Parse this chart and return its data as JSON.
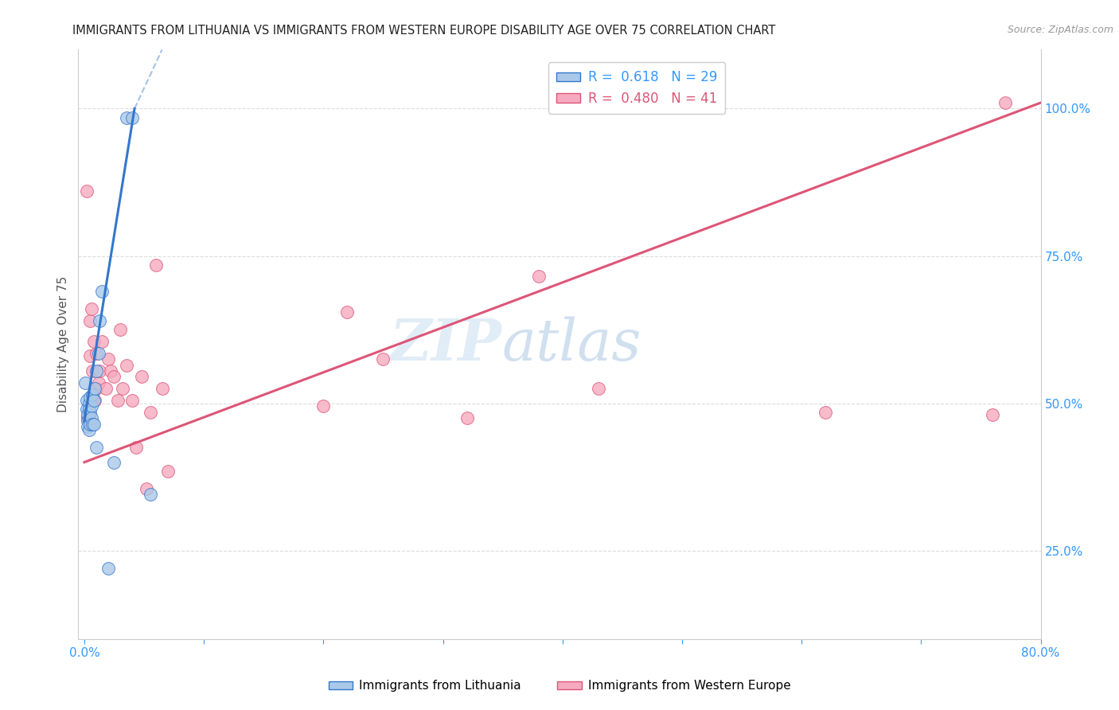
{
  "title": "IMMIGRANTS FROM LITHUANIA VS IMMIGRANTS FROM WESTERN EUROPE DISABILITY AGE OVER 75 CORRELATION CHART",
  "source": "Source: ZipAtlas.com",
  "ylabel": "Disability Age Over 75",
  "legend_label1": "Immigrants from Lithuania",
  "legend_label2": "Immigrants from Western Europe",
  "r1": 0.618,
  "n1": 29,
  "r2": 0.48,
  "n2": 41,
  "color1": "#aac8e8",
  "color2": "#f5aabf",
  "trendline1_color": "#3377cc",
  "trendline2_color": "#dd5577",
  "xlim": [
    -0.005,
    0.8
  ],
  "ylim": [
    0.1,
    1.1
  ],
  "xticks": [
    0.0,
    0.1,
    0.2,
    0.3,
    0.4,
    0.5,
    0.6,
    0.7,
    0.8
  ],
  "xticklabels": [
    "0.0%",
    "",
    "",
    "",
    "",
    "",
    "",
    "",
    "80.0%"
  ],
  "yticks_right": [
    0.25,
    0.5,
    0.75,
    1.0
  ],
  "yticklabels_right": [
    "25.0%",
    "50.0%",
    "75.0%",
    "100.0%"
  ],
  "lithuania_x": [
    0.001,
    0.002,
    0.002,
    0.003,
    0.003,
    0.003,
    0.004,
    0.004,
    0.004,
    0.005,
    0.005,
    0.005,
    0.006,
    0.006,
    0.007,
    0.007,
    0.008,
    0.008,
    0.009,
    0.01,
    0.01,
    0.012,
    0.013,
    0.015,
    0.02,
    0.025,
    0.035,
    0.04,
    0.055
  ],
  "lithuania_y": [
    0.535,
    0.505,
    0.49,
    0.48,
    0.47,
    0.46,
    0.5,
    0.455,
    0.49,
    0.51,
    0.485,
    0.465,
    0.495,
    0.475,
    0.515,
    0.465,
    0.505,
    0.465,
    0.525,
    0.555,
    0.425,
    0.585,
    0.64,
    0.69,
    0.22,
    0.4,
    0.985,
    0.985,
    0.345
  ],
  "western_x": [
    0.002,
    0.003,
    0.003,
    0.004,
    0.005,
    0.005,
    0.006,
    0.006,
    0.007,
    0.008,
    0.009,
    0.01,
    0.01,
    0.012,
    0.013,
    0.015,
    0.018,
    0.02,
    0.022,
    0.025,
    0.028,
    0.03,
    0.032,
    0.035,
    0.04,
    0.043,
    0.048,
    0.052,
    0.055,
    0.06,
    0.065,
    0.07,
    0.2,
    0.22,
    0.25,
    0.32,
    0.38,
    0.43,
    0.62,
    0.76,
    0.77
  ],
  "western_y": [
    0.86,
    0.475,
    0.475,
    0.475,
    0.64,
    0.58,
    0.66,
    0.505,
    0.555,
    0.605,
    0.505,
    0.585,
    0.525,
    0.535,
    0.555,
    0.605,
    0.525,
    0.575,
    0.555,
    0.545,
    0.505,
    0.625,
    0.525,
    0.565,
    0.505,
    0.425,
    0.545,
    0.355,
    0.485,
    0.735,
    0.525,
    0.385,
    0.495,
    0.655,
    0.575,
    0.475,
    0.715,
    0.525,
    0.485,
    0.48,
    1.01
  ],
  "watermark_zip": "ZIP",
  "watermark_atlas": "atlas",
  "background_color": "#ffffff",
  "grid_color": "#dddddd",
  "trendline1_x0": 0.0,
  "trendline1_y0": 0.47,
  "trendline1_x1": 0.042,
  "trendline1_y1": 1.0,
  "trendline1_dash_x0": 0.042,
  "trendline1_dash_y0": 1.0,
  "trendline1_dash_x1": 0.065,
  "trendline1_dash_y1": 1.1,
  "trendline2_x0": 0.0,
  "trendline2_y0": 0.4,
  "trendline2_x1": 0.8,
  "trendline2_y1": 1.01
}
